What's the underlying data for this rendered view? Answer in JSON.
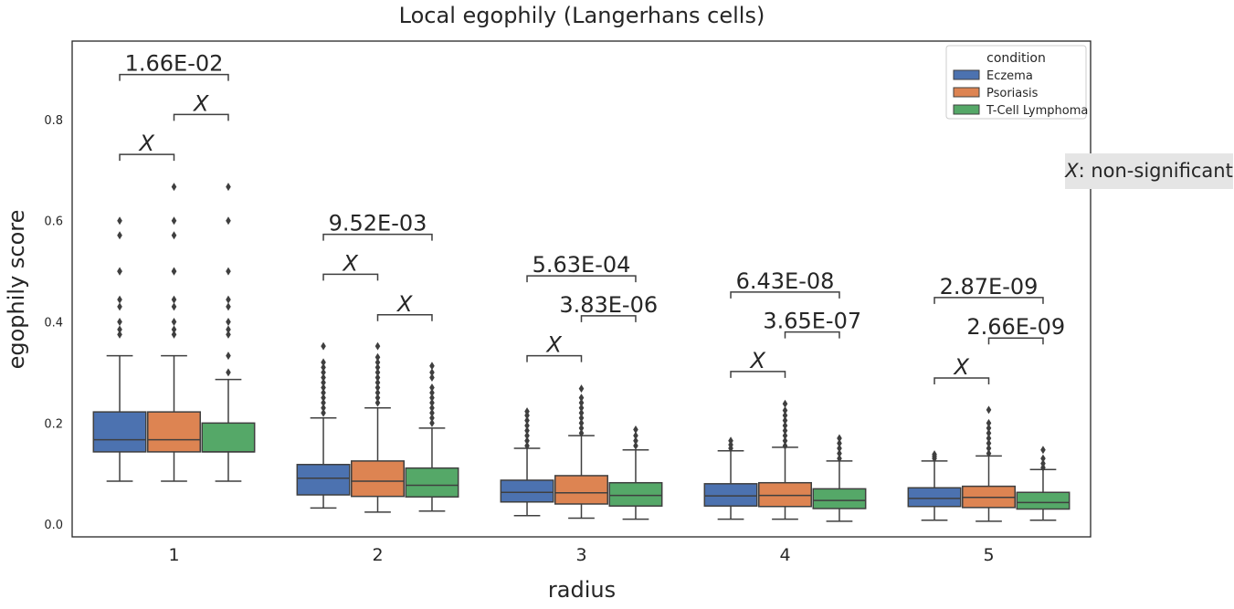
{
  "chart_data": {
    "type": "box",
    "title": "Local egophily (Langerhans cells)",
    "xlabel": "radius",
    "ylabel": "egophily score",
    "categories": [
      "1",
      "2",
      "3",
      "4",
      "5"
    ],
    "ylim": [
      -0.025,
      0.955
    ],
    "yticks": [
      0.0,
      0.2,
      0.4,
      0.6,
      0.8
    ],
    "ytick_labels": [
      "0.0",
      "0.2",
      "0.4",
      "0.6",
      "0.8"
    ],
    "legend": {
      "title": "condition",
      "placement": "top-right"
    },
    "colors": {
      "Eczema": "#4c72b0",
      "Psoriasis": "#dd8452",
      "T-Cell Lymphoma": "#55a868",
      "line": "#3f3f3f"
    },
    "series": [
      {
        "name": "Eczema",
        "boxes": [
          {
            "whislo": 0.085,
            "q1": 0.143,
            "med": 0.167,
            "q3": 0.222,
            "whishi": 0.333,
            "fliers": [
              0.375,
              0.385,
              0.4,
              0.43,
              0.444,
              0.5,
              0.5,
              0.571,
              0.6
            ]
          },
          {
            "whislo": 0.032,
            "q1": 0.058,
            "med": 0.091,
            "q3": 0.118,
            "whishi": 0.21,
            "fliers": [
              0.22,
              0.23,
              0.24,
              0.25,
              0.26,
              0.27,
              0.28,
              0.29,
              0.3,
              0.31,
              0.32,
              0.352
            ]
          },
          {
            "whislo": 0.017,
            "q1": 0.044,
            "med": 0.063,
            "q3": 0.087,
            "whishi": 0.15,
            "fliers": [
              0.155,
              0.165,
              0.175,
              0.185,
              0.195,
              0.205,
              0.215,
              0.223
            ]
          },
          {
            "whislo": 0.01,
            "q1": 0.036,
            "med": 0.056,
            "q3": 0.08,
            "whishi": 0.145,
            "fliers": [
              0.15,
              0.157,
              0.165
            ]
          },
          {
            "whislo": 0.008,
            "q1": 0.035,
            "med": 0.051,
            "q3": 0.072,
            "whishi": 0.125,
            "fliers": [
              0.13,
              0.134,
              0.138
            ]
          }
        ]
      },
      {
        "name": "Psoriasis",
        "boxes": [
          {
            "whislo": 0.085,
            "q1": 0.143,
            "med": 0.167,
            "q3": 0.222,
            "whishi": 0.333,
            "fliers": [
              0.375,
              0.385,
              0.4,
              0.43,
              0.444,
              0.5,
              0.5,
              0.571,
              0.6,
              0.667
            ]
          },
          {
            "whislo": 0.024,
            "q1": 0.055,
            "med": 0.085,
            "q3": 0.125,
            "whishi": 0.23,
            "fliers": [
              0.24,
              0.25,
              0.26,
              0.27,
              0.28,
              0.29,
              0.3,
              0.31,
              0.32,
              0.33,
              0.352
            ]
          },
          {
            "whislo": 0.012,
            "q1": 0.04,
            "med": 0.062,
            "q3": 0.096,
            "whishi": 0.175,
            "fliers": [
              0.18,
              0.19,
              0.2,
              0.21,
              0.22,
              0.23,
              0.24,
              0.25,
              0.268
            ]
          },
          {
            "whislo": 0.01,
            "q1": 0.035,
            "med": 0.057,
            "q3": 0.082,
            "whishi": 0.152,
            "fliers": [
              0.155,
              0.165,
              0.175,
              0.185,
              0.195,
              0.205,
              0.215,
              0.225,
              0.238
            ]
          },
          {
            "whislo": 0.006,
            "q1": 0.033,
            "med": 0.053,
            "q3": 0.075,
            "whishi": 0.135,
            "fliers": [
              0.14,
              0.15,
              0.16,
              0.17,
              0.18,
              0.19,
              0.2,
              0.226
            ]
          }
        ]
      },
      {
        "name": "T-Cell Lymphoma",
        "boxes": [
          {
            "whislo": 0.085,
            "q1": 0.143,
            "med": 0.143,
            "q3": 0.2,
            "whishi": 0.286,
            "fliers": [
              0.3,
              0.333,
              0.375,
              0.385,
              0.4,
              0.43,
              0.444,
              0.5,
              0.6,
              0.667
            ]
          },
          {
            "whislo": 0.026,
            "q1": 0.054,
            "med": 0.077,
            "q3": 0.111,
            "whishi": 0.19,
            "fliers": [
              0.2,
              0.21,
              0.22,
              0.23,
              0.24,
              0.25,
              0.26,
              0.27,
              0.29,
              0.3,
              0.313
            ]
          },
          {
            "whislo": 0.01,
            "q1": 0.036,
            "med": 0.057,
            "q3": 0.082,
            "whishi": 0.147,
            "fliers": [
              0.155,
              0.165,
              0.175,
              0.187
            ]
          },
          {
            "whislo": 0.006,
            "q1": 0.031,
            "med": 0.047,
            "q3": 0.07,
            "whishi": 0.125,
            "fliers": [
              0.13,
              0.14,
              0.15,
              0.16,
              0.17
            ]
          },
          {
            "whislo": 0.008,
            "q1": 0.03,
            "med": 0.043,
            "q3": 0.063,
            "whishi": 0.108,
            "fliers": [
              0.112,
              0.12,
              0.13,
              0.147
            ]
          }
        ]
      }
    ],
    "annotations": [
      {
        "radius": "1",
        "from": "Eczema",
        "to": "Psoriasis",
        "y": 0.731,
        "label": "X"
      },
      {
        "radius": "1",
        "from": "Psoriasis",
        "to": "T-Cell Lymphoma",
        "y": 0.81,
        "label": "X"
      },
      {
        "radius": "1",
        "from": "Eczema",
        "to": "T-Cell Lymphoma",
        "y": 0.889,
        "label": "1.66E-02"
      },
      {
        "radius": "2",
        "from": "Eczema",
        "to": "Psoriasis",
        "y": 0.494,
        "label": "X"
      },
      {
        "radius": "2",
        "from": "Psoriasis",
        "to": "T-Cell Lymphoma",
        "y": 0.414,
        "label": "X"
      },
      {
        "radius": "2",
        "from": "Eczema",
        "to": "T-Cell Lymphoma",
        "y": 0.573,
        "label": "9.52E-03"
      },
      {
        "radius": "3",
        "from": "Eczema",
        "to": "Psoriasis",
        "y": 0.333,
        "label": "X"
      },
      {
        "radius": "3",
        "from": "Psoriasis",
        "to": "T-Cell Lymphoma",
        "y": 0.412,
        "label": "3.83E-06"
      },
      {
        "radius": "3",
        "from": "Eczema",
        "to": "T-Cell Lymphoma",
        "y": 0.491,
        "label": "5.63E-04"
      },
      {
        "radius": "4",
        "from": "Eczema",
        "to": "Psoriasis",
        "y": 0.302,
        "label": "X"
      },
      {
        "radius": "4",
        "from": "Psoriasis",
        "to": "T-Cell Lymphoma",
        "y": 0.38,
        "label": "3.65E-07"
      },
      {
        "radius": "4",
        "from": "Eczema",
        "to": "T-Cell Lymphoma",
        "y": 0.459,
        "label": "6.43E-08"
      },
      {
        "radius": "5",
        "from": "Eczema",
        "to": "Psoriasis",
        "y": 0.289,
        "label": "X"
      },
      {
        "radius": "5",
        "from": "Psoriasis",
        "to": "T-Cell Lymphoma",
        "y": 0.368,
        "label": "2.66E-09"
      },
      {
        "radius": "5",
        "from": "Eczema",
        "to": "T-Cell Lymphoma",
        "y": 0.448,
        "label": "2.87E-09"
      }
    ],
    "note": {
      "symbol": "X",
      "text": ": non-significant"
    }
  }
}
